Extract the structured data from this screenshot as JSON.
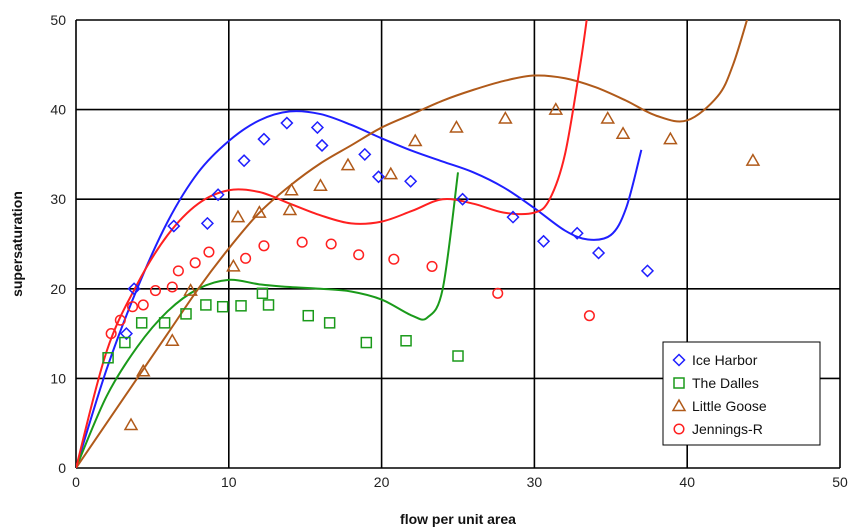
{
  "chart_data": {
    "type": "scatter",
    "xlabel": "flow per unit area",
    "ylabel": "supersaturation",
    "xlim": [
      0,
      50
    ],
    "ylim": [
      0,
      50
    ],
    "xticks": [
      0,
      10,
      20,
      30,
      40,
      50
    ],
    "yticks": [
      0,
      10,
      20,
      30,
      40,
      50
    ],
    "grid": true,
    "legend_position": "bottom-right",
    "series": [
      {
        "name": "Ice Harbor",
        "marker": "diamond",
        "color": "#1f1fff",
        "points": [
          [
            3.3,
            15
          ],
          [
            3.8,
            20
          ],
          [
            6.4,
            27
          ],
          [
            8.6,
            27.3
          ],
          [
            9.3,
            30.5
          ],
          [
            11,
            34.3
          ],
          [
            12.3,
            36.7
          ],
          [
            13.8,
            38.5
          ],
          [
            15.8,
            38
          ],
          [
            16.1,
            36
          ],
          [
            18.9,
            35
          ],
          [
            19.8,
            32.5
          ],
          [
            21.9,
            32
          ],
          [
            25.3,
            30
          ],
          [
            28.6,
            28
          ],
          [
            30.6,
            25.3
          ],
          [
            32.8,
            26.2
          ],
          [
            34.2,
            24
          ],
          [
            37.4,
            22
          ]
        ],
        "trend": [
          [
            0,
            0
          ],
          [
            2,
            11
          ],
          [
            4,
            20
          ],
          [
            6,
            27.5
          ],
          [
            8,
            33
          ],
          [
            10,
            36.5
          ],
          [
            12,
            38.8
          ],
          [
            14,
            39.8
          ],
          [
            16,
            39.5
          ],
          [
            18,
            38.3
          ],
          [
            20,
            36.8
          ],
          [
            22,
            35.4
          ],
          [
            24,
            34.2
          ],
          [
            26,
            33
          ],
          [
            28,
            31.3
          ],
          [
            30,
            29
          ],
          [
            32,
            26.5
          ],
          [
            33.5,
            25.5
          ],
          [
            35,
            26
          ],
          [
            36,
            29
          ],
          [
            37,
            35.5
          ]
        ]
      },
      {
        "name": "The Dalles",
        "marker": "square",
        "color": "#1a9a1a",
        "points": [
          [
            2.1,
            12.3
          ],
          [
            3.2,
            14
          ],
          [
            4.3,
            16.2
          ],
          [
            5.8,
            16.2
          ],
          [
            7.2,
            17.2
          ],
          [
            8.5,
            18.2
          ],
          [
            9.6,
            18
          ],
          [
            10.8,
            18.1
          ],
          [
            12.2,
            19.5
          ],
          [
            12.6,
            18.2
          ],
          [
            15.2,
            17
          ],
          [
            16.6,
            16.2
          ],
          [
            19,
            14
          ],
          [
            21.6,
            14.2
          ],
          [
            25,
            12.5
          ]
        ],
        "trend": [
          [
            0,
            0
          ],
          [
            2,
            8
          ],
          [
            4,
            13.5
          ],
          [
            6,
            17.5
          ],
          [
            8,
            20
          ],
          [
            10,
            21
          ],
          [
            12,
            20.5
          ],
          [
            14,
            20.2
          ],
          [
            16,
            20
          ],
          [
            18,
            19.7
          ],
          [
            20,
            18.8
          ],
          [
            22,
            17
          ],
          [
            23,
            16.8
          ],
          [
            24,
            20
          ],
          [
            25,
            33
          ]
        ]
      },
      {
        "name": "Little Goose",
        "marker": "triangle",
        "color": "#b05a1a",
        "points": [
          [
            3.6,
            4.8
          ],
          [
            4.4,
            10.8
          ],
          [
            6.3,
            14.2
          ],
          [
            7.5,
            19.8
          ],
          [
            10.3,
            22.5
          ],
          [
            10.6,
            28
          ],
          [
            12,
            28.5
          ],
          [
            14,
            28.8
          ],
          [
            14.1,
            31
          ],
          [
            16,
            31.5
          ],
          [
            17.8,
            33.8
          ],
          [
            20.6,
            32.8
          ],
          [
            22.2,
            36.5
          ],
          [
            24.9,
            38
          ],
          [
            28.1,
            39
          ],
          [
            31.4,
            40
          ],
          [
            34.8,
            39
          ],
          [
            35.8,
            37.3
          ],
          [
            38.9,
            36.7
          ],
          [
            44.3,
            34.3
          ]
        ],
        "trend": [
          [
            0,
            0
          ],
          [
            2,
            5
          ],
          [
            4,
            10
          ],
          [
            6,
            15
          ],
          [
            8,
            20
          ],
          [
            10,
            24.5
          ],
          [
            12,
            28.5
          ],
          [
            14,
            31.5
          ],
          [
            16,
            34
          ],
          [
            18,
            36
          ],
          [
            20,
            38
          ],
          [
            22,
            39.5
          ],
          [
            24,
            41
          ],
          [
            26,
            42.2
          ],
          [
            28,
            43.2
          ],
          [
            30,
            43.8
          ],
          [
            32,
            43.5
          ],
          [
            34,
            42.5
          ],
          [
            36,
            41
          ],
          [
            38,
            39.3
          ],
          [
            40,
            38.8
          ],
          [
            42,
            41.5
          ],
          [
            43,
            45
          ],
          [
            44,
            50.5
          ]
        ]
      },
      {
        "name": "Jennings-R",
        "marker": "circle",
        "color": "#ff2020",
        "points": [
          [
            2.3,
            15
          ],
          [
            2.9,
            16.5
          ],
          [
            3.7,
            18
          ],
          [
            4.4,
            18.2
          ],
          [
            5.2,
            19.8
          ],
          [
            6.3,
            20.2
          ],
          [
            6.7,
            22
          ],
          [
            7.8,
            22.9
          ],
          [
            8.7,
            24.1
          ],
          [
            11.1,
            23.4
          ],
          [
            12.3,
            24.8
          ],
          [
            14.8,
            25.2
          ],
          [
            16.7,
            25
          ],
          [
            18.5,
            23.8
          ],
          [
            20.8,
            23.3
          ],
          [
            23.3,
            22.5
          ],
          [
            27.6,
            19.5
          ],
          [
            33.6,
            17
          ]
        ],
        "trend": [
          [
            0,
            0
          ],
          [
            2,
            13
          ],
          [
            4,
            20.5
          ],
          [
            6,
            26
          ],
          [
            8,
            29.5
          ],
          [
            10,
            31
          ],
          [
            12,
            30.8
          ],
          [
            14,
            29.5
          ],
          [
            16,
            28.2
          ],
          [
            18,
            27.3
          ],
          [
            20,
            27.5
          ],
          [
            22,
            28.7
          ],
          [
            24,
            30
          ],
          [
            26,
            29.5
          ],
          [
            28,
            28.5
          ],
          [
            30,
            28.5
          ],
          [
            31,
            30
          ],
          [
            32,
            35
          ],
          [
            33,
            45
          ],
          [
            33.5,
            51
          ]
        ]
      }
    ]
  }
}
